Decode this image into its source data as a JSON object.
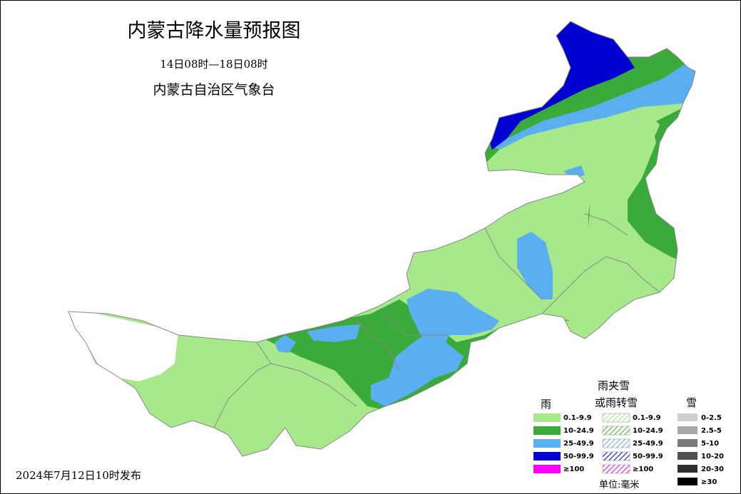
{
  "header": {
    "title": "内蒙古降水量预报图",
    "period": "14日08时—18日08时",
    "issuer": "内蒙古自治区气象台"
  },
  "footer": {
    "issued": "2024年7月12日10时发布",
    "unit": "单位:毫米"
  },
  "legend": {
    "rain": {
      "title": "雨",
      "items": [
        "0.1-9.9",
        "10-24.9",
        "25-49.9",
        "50-99.9",
        "≥100"
      ]
    },
    "mixed": {
      "title": [
        "雨夹雪",
        "或雨转雪"
      ],
      "items": [
        "0.1-9.9",
        "10-24.9",
        "25-49.9",
        "50-99.9",
        "≥100"
      ]
    },
    "snow": {
      "title": "雪",
      "items": [
        "0-2.5",
        "2.5-5",
        "5-10",
        "10-20",
        "20-30",
        "≥30"
      ]
    }
  }
}
